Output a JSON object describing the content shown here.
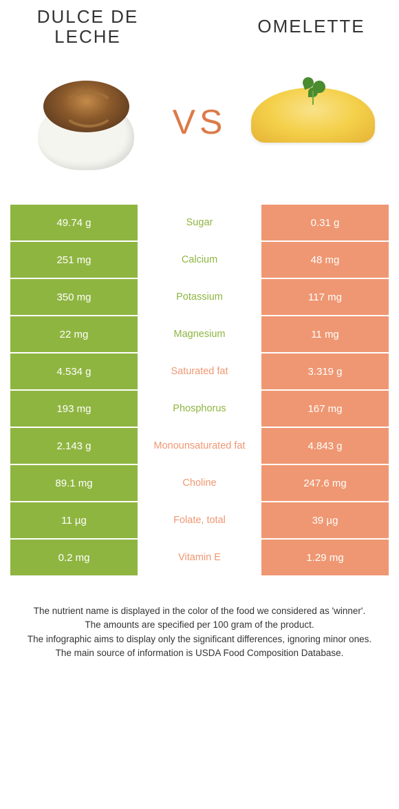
{
  "header": {
    "left_title": "Dulce de leche",
    "right_title": "Omelette",
    "vs": "VS"
  },
  "colors": {
    "left": "#8fb541",
    "right": "#ef9772",
    "vs_text": "#dc7a48"
  },
  "rows": [
    {
      "left": "49.74 g",
      "label": "Sugar",
      "right": "0.31 g",
      "winner": "left"
    },
    {
      "left": "251 mg",
      "label": "Calcium",
      "right": "48 mg",
      "winner": "left"
    },
    {
      "left": "350 mg",
      "label": "Potassium",
      "right": "117 mg",
      "winner": "left"
    },
    {
      "left": "22 mg",
      "label": "Magnesium",
      "right": "11 mg",
      "winner": "left"
    },
    {
      "left": "4.534 g",
      "label": "Saturated fat",
      "right": "3.319 g",
      "winner": "right"
    },
    {
      "left": "193 mg",
      "label": "Phosphorus",
      "right": "167 mg",
      "winner": "left"
    },
    {
      "left": "2.143 g",
      "label": "Monounsaturated fat",
      "right": "4.843 g",
      "winner": "right"
    },
    {
      "left": "89.1 mg",
      "label": "Choline",
      "right": "247.6 mg",
      "winner": "right"
    },
    {
      "left": "11 µg",
      "label": "Folate, total",
      "right": "39 µg",
      "winner": "right"
    },
    {
      "left": "0.2 mg",
      "label": "Vitamin E",
      "right": "1.29 mg",
      "winner": "right"
    }
  ],
  "footer": {
    "line1": "The nutrient name is displayed in the color of the food we considered as 'winner'.",
    "line2": "The amounts are specified per 100 gram of the product.",
    "line3": "The infographic aims to display only the significant differences, ignoring minor ones.",
    "line4": "The main source of information is USDA Food Composition Database."
  }
}
